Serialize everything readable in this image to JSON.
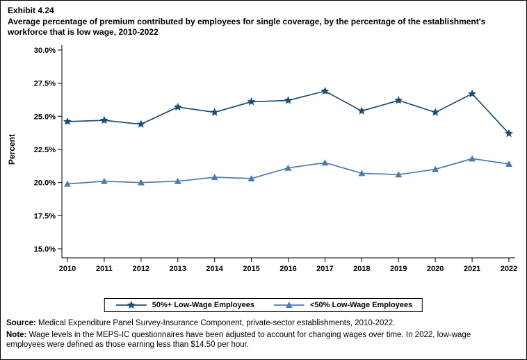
{
  "header": {
    "exhibit_label": "Exhibit 4.24",
    "title": "Average percentage of premium contributed by employees for single coverage, by the percentage of the establishment's workforce that is low wage, 2010-2022"
  },
  "chart_data": {
    "type": "line",
    "x": [
      "2010",
      "2011",
      "2012",
      "2013",
      "2014",
      "2015",
      "2016",
      "2017",
      "2018",
      "2019",
      "2020",
      "2021",
      "2022"
    ],
    "series": [
      {
        "name": "50%+ Low-Wage Employees",
        "marker": "star",
        "color": "#1d4d72",
        "values": [
          24.6,
          24.7,
          24.4,
          25.7,
          25.3,
          26.1,
          26.2,
          26.9,
          25.4,
          26.2,
          25.3,
          26.7,
          23.7
        ]
      },
      {
        "name": "<50% Low-Wage Employees",
        "marker": "triangle",
        "color": "#4c7cae",
        "values": [
          19.9,
          20.1,
          20.0,
          20.1,
          20.4,
          20.3,
          21.1,
          21.5,
          20.7,
          20.6,
          21.0,
          21.8,
          21.4
        ]
      }
    ],
    "ylabel": "Percent",
    "ylim": [
      15.0,
      30.0
    ],
    "ytick_values": [
      30.0,
      27.5,
      25.0,
      22.5,
      20.0,
      17.5,
      15.0
    ],
    "ytick_labels": [
      "30.0%",
      "27.5%",
      "25.0%",
      "22.5%",
      "20.0%",
      "17.5%",
      "15.0%"
    ],
    "grid": false,
    "legend_position": "bottom-center"
  },
  "footer": {
    "source_label": "Source:",
    "source_text": "Medical Expenditure Panel Survey-Insurance Component, private-sector establishments, 2010-2022.",
    "note_label": "Note:",
    "note_text": "Wage levels in the MEPS-IC questionnaires have been adjusted to account for changing wages over time.  In 2022, low-wage employees were defined as those earning less than $14.50 per hour."
  }
}
